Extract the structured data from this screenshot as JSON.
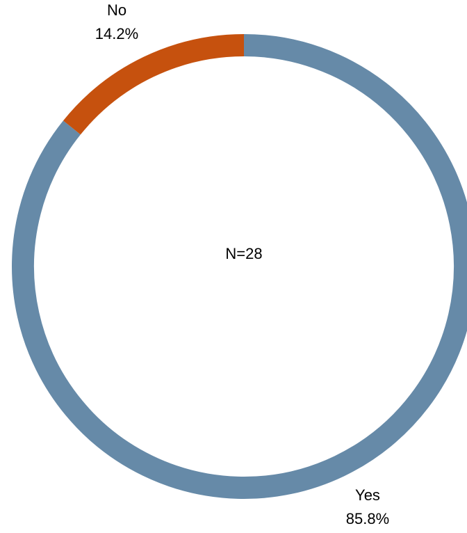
{
  "chart_data": {
    "type": "pie",
    "variant": "donut",
    "center_label": "N=28",
    "slices": [
      {
        "label": "Yes",
        "value": 85.8,
        "value_label": "85.8%",
        "color": "#668aa8"
      },
      {
        "label": "No",
        "value": 14.2,
        "value_label": "14.2%",
        "color": "#c6510e"
      }
    ],
    "start": "top",
    "direction": "clockwise",
    "legend": "none"
  }
}
